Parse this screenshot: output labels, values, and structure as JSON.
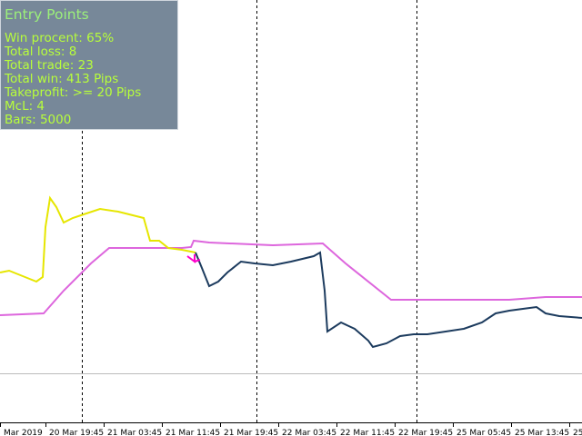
{
  "panel": {
    "title": "Entry Points",
    "lines": [
      "Win procent: 65%",
      "Total loss: 8",
      "Total trade: 23",
      "Total win: 413 Pips",
      "Takeprofit: >= 20 Pips",
      "McL: 4",
      "Bars: 5000"
    ]
  },
  "time_axis": {
    "labels": [
      "Mar 2019",
      "20 Mar 19:45",
      "21 Mar 03:45",
      "21 Mar 11:45",
      "21 Mar 19:45",
      "22 Mar 03:45",
      "22 Mar 11:45",
      "22 Mar 19:45",
      "25 Mar 05:45",
      "25 Mar 13:45",
      "25"
    ]
  }
}
